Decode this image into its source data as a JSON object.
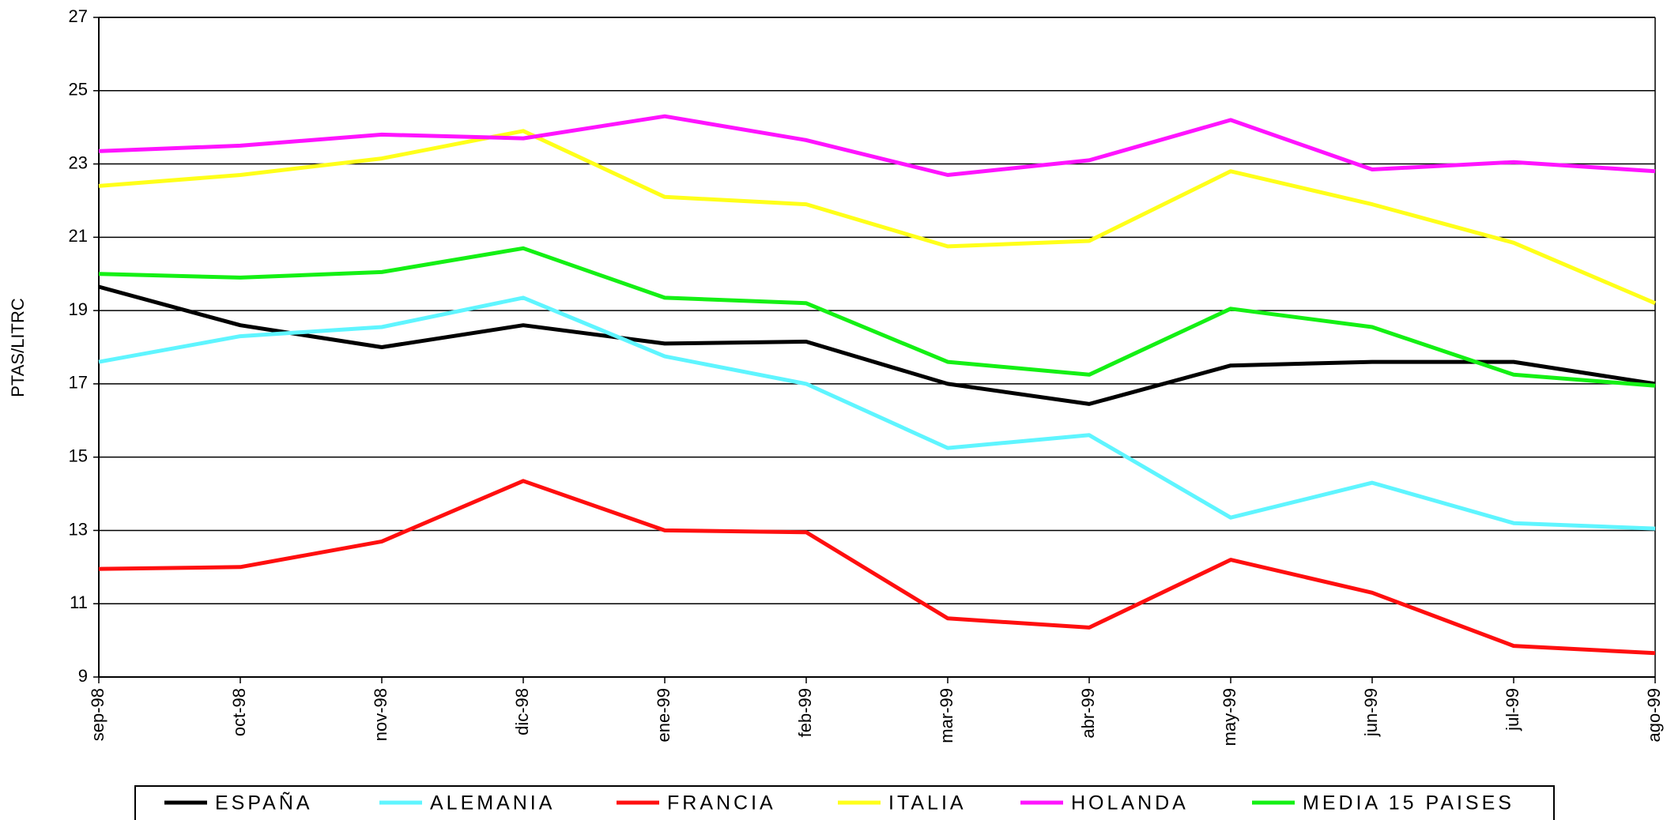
{
  "chart_data": {
    "type": "line",
    "y_label": "PTAS/LITRC",
    "categories": [
      "sep-98",
      "oct-98",
      "nov-98",
      "dic-98",
      "ene-99",
      "feb-99",
      "mar-99",
      "abr-99",
      "may-99",
      "jun-99",
      "jul-99",
      "ago-99"
    ],
    "series": [
      {
        "name": "ESPAÑA",
        "color": "#000000",
        "values": [
          19.65,
          18.6,
          18.0,
          18.6,
          18.1,
          18.15,
          17.0,
          16.45,
          17.5,
          17.6,
          17.6,
          17.0
        ]
      },
      {
        "name": "ALEMANIA",
        "color": "#5ff5ff",
        "values": [
          17.6,
          18.3,
          18.55,
          19.35,
          17.75,
          17.0,
          15.25,
          15.6,
          13.35,
          14.3,
          13.2,
          13.05
        ]
      },
      {
        "name": "FRANCIA",
        "color": "#ff0f0f",
        "values": [
          11.95,
          12.0,
          12.7,
          14.35,
          13.0,
          12.95,
          10.6,
          10.35,
          12.2,
          11.3,
          9.85,
          9.65
        ]
      },
      {
        "name": "ITALIA",
        "color": "#ffff1a",
        "values": [
          22.4,
          22.7,
          23.15,
          23.9,
          22.1,
          21.9,
          20.75,
          20.9,
          22.8,
          21.9,
          20.85,
          19.2
        ]
      },
      {
        "name": "HOLANDA",
        "color": "#ff14ff",
        "values": [
          23.35,
          23.5,
          23.8,
          23.7,
          24.3,
          23.65,
          22.7,
          23.1,
          24.2,
          22.85,
          23.05,
          22.8
        ]
      },
      {
        "name": "MEDIA 15 PAISES",
        "color": "#14f014",
        "values": [
          20.0,
          19.9,
          20.05,
          20.7,
          19.35,
          19.2,
          17.6,
          17.25,
          19.05,
          18.55,
          17.25,
          16.95
        ]
      }
    ],
    "ylim": [
      9,
      27
    ],
    "yticks": [
      9,
      11,
      13,
      15,
      17,
      19,
      21,
      23,
      25,
      27
    ],
    "grid": true,
    "legend": "bottom"
  }
}
